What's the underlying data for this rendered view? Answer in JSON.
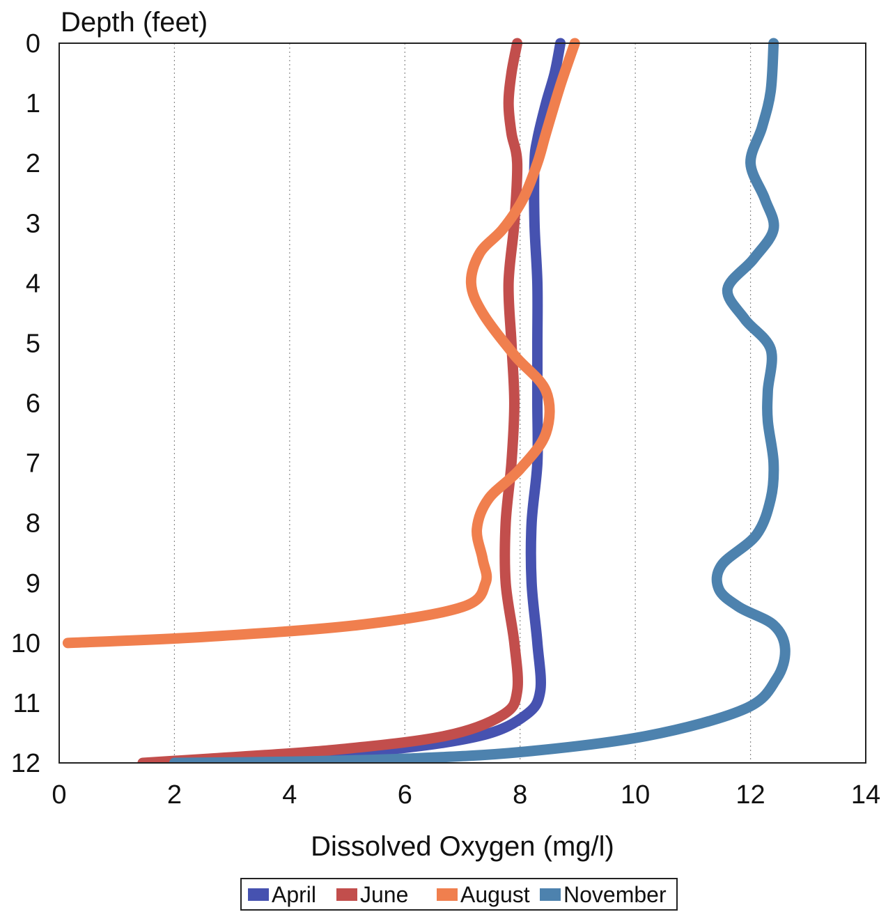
{
  "chart_data": {
    "type": "line",
    "orientation": "depth-profile",
    "title": "",
    "xlabel": "Dissolved Oxygen (mg/l)",
    "ylabel": "Depth (feet)",
    "xlim": [
      0,
      14
    ],
    "ylim": [
      0,
      12
    ],
    "y_inverted": true,
    "x_ticks": [
      0,
      2,
      4,
      6,
      8,
      10,
      12,
      14
    ],
    "y_ticks": [
      0,
      1,
      2,
      3,
      4,
      5,
      6,
      7,
      8,
      9,
      10,
      11,
      12
    ],
    "grid": "vertical dotted",
    "legend_position": "bottom-center",
    "series": [
      {
        "name": "April",
        "color": "#4652b0",
        "points": [
          [
            8.7,
            0
          ],
          [
            8.6,
            0.5
          ],
          [
            8.45,
            1
          ],
          [
            8.3,
            1.6
          ],
          [
            8.25,
            2
          ],
          [
            8.25,
            3
          ],
          [
            8.3,
            4
          ],
          [
            8.3,
            5
          ],
          [
            8.3,
            6
          ],
          [
            8.3,
            7
          ],
          [
            8.2,
            8
          ],
          [
            8.2,
            9
          ],
          [
            8.3,
            10
          ],
          [
            8.35,
            10.8
          ],
          [
            8.1,
            11.2
          ],
          [
            7.3,
            11.55
          ],
          [
            5.5,
            11.8
          ],
          [
            3.0,
            11.95
          ],
          [
            1.8,
            12
          ]
        ]
      },
      {
        "name": "June",
        "color": "#c24e4c",
        "points": [
          [
            7.95,
            0
          ],
          [
            7.85,
            0.5
          ],
          [
            7.8,
            1
          ],
          [
            7.85,
            1.5
          ],
          [
            7.95,
            2
          ],
          [
            7.9,
            3
          ],
          [
            7.8,
            4
          ],
          [
            7.85,
            5
          ],
          [
            7.9,
            6
          ],
          [
            7.85,
            7
          ],
          [
            7.75,
            8
          ],
          [
            7.75,
            9
          ],
          [
            7.9,
            10
          ],
          [
            7.95,
            10.8
          ],
          [
            7.7,
            11.2
          ],
          [
            6.7,
            11.55
          ],
          [
            4.8,
            11.78
          ],
          [
            2.6,
            11.93
          ],
          [
            1.45,
            12
          ]
        ]
      },
      {
        "name": "August",
        "color": "#f07f4e",
        "points": [
          [
            8.95,
            0
          ],
          [
            8.7,
            0.7
          ],
          [
            8.45,
            1.5
          ],
          [
            8.3,
            2
          ],
          [
            8.05,
            2.6
          ],
          [
            7.7,
            3.1
          ],
          [
            7.3,
            3.5
          ],
          [
            7.15,
            4
          ],
          [
            7.35,
            4.5
          ],
          [
            7.9,
            5.2
          ],
          [
            8.45,
            5.8
          ],
          [
            8.45,
            6.5
          ],
          [
            8.0,
            7.1
          ],
          [
            7.45,
            7.6
          ],
          [
            7.25,
            8.1
          ],
          [
            7.35,
            8.6
          ],
          [
            7.4,
            9
          ],
          [
            7.0,
            9.4
          ],
          [
            5.2,
            9.7
          ],
          [
            2.5,
            9.9
          ],
          [
            0.15,
            10
          ]
        ]
      },
      {
        "name": "November",
        "color": "#4d82ae",
        "points": [
          [
            12.4,
            0
          ],
          [
            12.35,
            0.8
          ],
          [
            12.2,
            1.4
          ],
          [
            12.0,
            2
          ],
          [
            12.25,
            2.6
          ],
          [
            12.4,
            3.1
          ],
          [
            12.05,
            3.6
          ],
          [
            11.6,
            4.1
          ],
          [
            11.9,
            4.6
          ],
          [
            12.35,
            5.1
          ],
          [
            12.3,
            5.8
          ],
          [
            12.3,
            6.3
          ],
          [
            12.4,
            7
          ],
          [
            12.35,
            7.6
          ],
          [
            12.1,
            8.2
          ],
          [
            11.5,
            8.7
          ],
          [
            11.45,
            9.1
          ],
          [
            11.8,
            9.4
          ],
          [
            12.4,
            9.7
          ],
          [
            12.6,
            10.1
          ],
          [
            12.45,
            10.6
          ],
          [
            11.9,
            11.1
          ],
          [
            10.2,
            11.55
          ],
          [
            8.0,
            11.82
          ],
          [
            6.0,
            11.93
          ],
          [
            4.0,
            11.98
          ],
          [
            2.0,
            12
          ]
        ]
      }
    ]
  }
}
